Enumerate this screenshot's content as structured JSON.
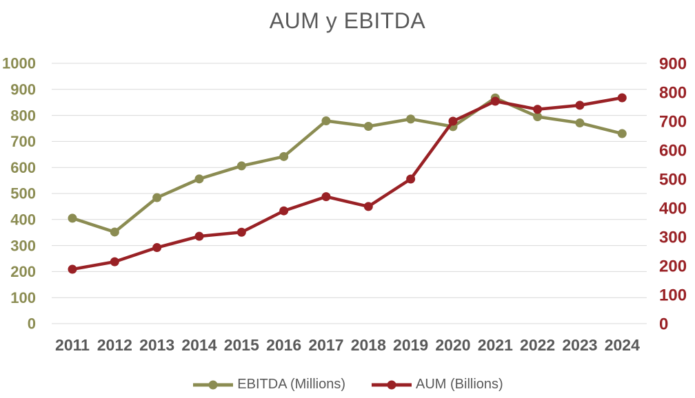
{
  "chart_data": {
    "type": "line",
    "title": "AUM y EBITDA",
    "title_color": "#595959",
    "background": "#FFFFFF",
    "categories": [
      "2011",
      "2012",
      "2013",
      "2014",
      "2015",
      "2016",
      "2017",
      "2018",
      "2019",
      "2020",
      "2021",
      "2022",
      "2023",
      "2024"
    ],
    "series": [
      {
        "name": "EBITDA (Millions)",
        "axis": "left",
        "color": "#8B8C52",
        "values": [
          405,
          352,
          484,
          556,
          606,
          642,
          779,
          758,
          786,
          757,
          867,
          795,
          771,
          730
        ]
      },
      {
        "name": "AUM (Billions)",
        "axis": "right",
        "color": "#992125",
        "values": [
          188,
          214,
          263,
          302,
          316,
          390,
          439,
          405,
          500,
          700,
          769,
          741,
          755,
          781
        ]
      }
    ],
    "left_axis": {
      "min": 0,
      "max": 1000,
      "step": 100,
      "tick_labels": [
        "1000",
        "900",
        "800",
        "700",
        "600",
        "500",
        "400",
        "300",
        "200",
        "100",
        "0"
      ],
      "color": "#8B8C52"
    },
    "right_axis": {
      "min": 0,
      "max": 900,
      "step": 100,
      "tick_labels": [
        "900",
        "800",
        "700",
        "600",
        "500",
        "400",
        "300",
        "200",
        "100",
        "0"
      ],
      "color": "#992125"
    },
    "x_axis": {
      "labels_color": "#595959"
    },
    "grid": {
      "color": "#D9D9D9",
      "visible": true
    },
    "legend": {
      "position": "bottom",
      "items": [
        "EBITDA (Millions)",
        "AUM (Billions)"
      ]
    }
  }
}
